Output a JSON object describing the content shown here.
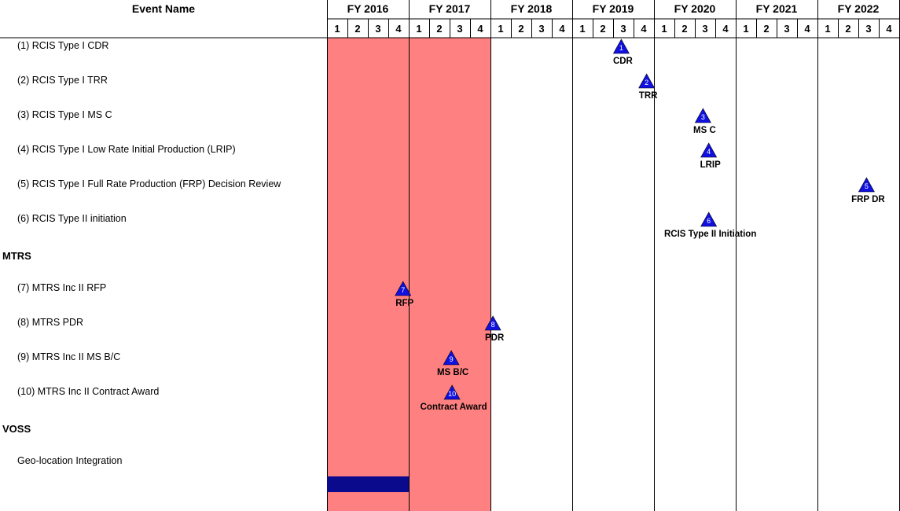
{
  "chart_data": {
    "type": "gantt",
    "column_header": "Event Name",
    "fiscal_years": [
      "FY 2016",
      "FY 2017",
      "FY 2018",
      "FY 2019",
      "FY 2020",
      "FY 2021",
      "FY 2022"
    ],
    "quarters": [
      "1",
      "2",
      "3",
      "4"
    ],
    "shaded_period": {
      "start": "FY 2016 Q1",
      "end": "FY 2017 Q4",
      "color": "#ff8080"
    },
    "rows": [
      {
        "label": "(1) RCIS Type I CDR",
        "kind": "event",
        "marker": {
          "num": "1",
          "label": "CDR",
          "x": 2019.6
        }
      },
      {
        "label": "(2) RCIS Type I TRR",
        "kind": "event",
        "marker": {
          "num": "2",
          "label": "TRR",
          "x": 2019.91
        }
      },
      {
        "label": "(3) RCIS Type I MS C",
        "kind": "event",
        "marker": {
          "num": "3",
          "label": "MS C",
          "x": 2020.6
        }
      },
      {
        "label": "(4) RCIS Type I Low Rate Initial Production (LRIP)",
        "kind": "event",
        "marker": {
          "num": "4",
          "label": "LRIP",
          "x": 2020.67
        }
      },
      {
        "label": "(5) RCIS Type I Full Rate Production (FRP) Decision Review",
        "kind": "event",
        "marker": {
          "num": "5",
          "label": "FRP DR",
          "x": 2022.6
        }
      },
      {
        "label": "(6) RCIS Type II initiation",
        "kind": "event",
        "marker": {
          "num": "6",
          "label": "RCIS Type II Initiation",
          "x": 2020.67
        }
      },
      {
        "label": "MTRS",
        "kind": "section"
      },
      {
        "label": "(7) MTRS Inc II RFP",
        "kind": "event",
        "marker": {
          "num": "7",
          "label": "RFP",
          "x": 2016.93
        }
      },
      {
        "label": "(8) MTRS PDR",
        "kind": "event",
        "marker": {
          "num": "8",
          "label": "PDR",
          "x": 2018.03
        }
      },
      {
        "label": "(9) MTRS Inc II MS B/C",
        "kind": "event",
        "marker": {
          "num": "9",
          "label": "MS B/C",
          "x": 2017.52
        }
      },
      {
        "label": "(10) MTRS Inc II Contract Award",
        "kind": "event",
        "marker": {
          "num": "10",
          "label": "Contract Award",
          "x": 2017.53
        }
      },
      {
        "label": "VOSS",
        "kind": "section"
      },
      {
        "label": "Geo-location Integration",
        "kind": "event",
        "bar": {
          "start": 2016.0,
          "end": 2017.0,
          "color": "#0a0a8c"
        }
      },
      {
        "label": "",
        "kind": "spacer"
      }
    ],
    "marker_color": "#1010e0"
  }
}
